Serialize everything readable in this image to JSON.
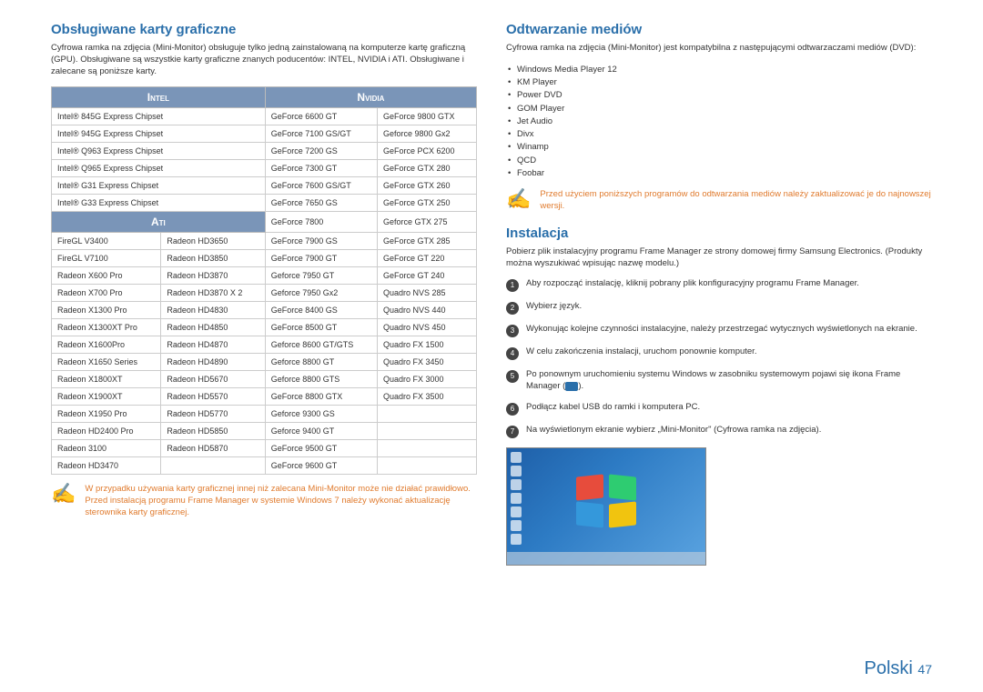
{
  "left": {
    "heading": "Obsługiwane karty graficzne",
    "intro": "Cyfrowa ramka na zdjęcia (Mini-Monitor) obsługuje tylko jedną zainstalowaną na komputerze kartę graficzną (GPU). Obsługiwane są wszystkie karty graficzne znanych poducentów: INTEL, NVIDIA i ATI. Obsługiwane i zalecane są poniższe karty.",
    "headers": {
      "intel": "Intel",
      "nvidia": "Nvidia",
      "ati": "Ati"
    },
    "intel_rows": [
      [
        "Intel® 845G Express Chipset",
        "GeForce 6600 GT",
        "GeForce 9800 GTX"
      ],
      [
        "Intel® 945G Express Chipset",
        "GeForce 7100 GS/GT",
        "Geforce 9800 Gx2"
      ],
      [
        "Intel® Q963 Express Chipset",
        "GeForce 7200 GS",
        "GeForce PCX 6200"
      ],
      [
        "Intel® Q965 Express Chipset",
        "GeForce 7300 GT",
        "GeForce GTX 280"
      ],
      [
        "Intel® G31 Express Chipset",
        "GeForce 7600 GS/GT",
        "GeForce GTX 260"
      ],
      [
        "Intel® G33 Express Chipset",
        "GeForce 7650 GS",
        "GeForce GTX 250"
      ]
    ],
    "ati_first": [
      "GeForce 7800",
      "Geforce GTX 275"
    ],
    "ati_rows": [
      [
        "FireGL V3400",
        "Radeon HD3650",
        "GeForce 7900 GS",
        "GeForce GTX 285"
      ],
      [
        "FireGL V7100",
        "Radeon HD3850",
        "GeForce 7900 GT",
        "GeForce GT 220"
      ],
      [
        "Radeon X600 Pro",
        "Radeon HD3870",
        "Geforce 7950 GT",
        "GeForce GT 240"
      ],
      [
        "Radeon X700 Pro",
        "Radeon HD3870 X 2",
        "Geforce 7950 Gx2",
        "Quadro NVS 285"
      ],
      [
        "Radeon X1300 Pro",
        "Radeon HD4830",
        "GeForce 8400 GS",
        "Quadro NVS 440"
      ],
      [
        "Radeon X1300XT Pro",
        "Radeon HD4850",
        "GeForce 8500 GT",
        "Quadro NVS 450"
      ],
      [
        "Radeon X1600Pro",
        "Radeon HD4870",
        "Geforce 8600 GT/GTS",
        "Quadro FX 1500"
      ],
      [
        "Radeon X1650 Series",
        "Radeon HD4890",
        "Geforce 8800 GT",
        "Quadro FX 3450"
      ],
      [
        "Radeon X1800XT",
        "Radeon HD5670",
        "Geforce 8800 GTS",
        "Quadro FX 3000"
      ],
      [
        "Radeon X1900XT",
        "Radeon HD5570",
        "GeForce 8800 GTX",
        "Quadro FX 3500"
      ],
      [
        "Radeon X1950 Pro",
        "Radeon HD5770",
        "Geforce 9300 GS",
        ""
      ],
      [
        "Radeon HD2400 Pro",
        "Radeon HD5850",
        "Geforce 9400 GT",
        ""
      ],
      [
        "Radeon 3100",
        "Radeon HD5870",
        "GeForce 9500 GT",
        ""
      ],
      [
        "Radeon HD3470",
        "",
        "GeForce 9600 GT",
        ""
      ]
    ],
    "note": "W przypadku używania karty graficznej innej niż zalecana Mini-Monitor może nie działać prawidłowo. Przed instalacją programu Frame Manager w systemie Windows 7 należy wykonać aktualizację sterownika karty graficznej."
  },
  "right": {
    "media_heading": "Odtwarzanie mediów",
    "media_intro": "Cyfrowa ramka na zdjęcia (Mini-Monitor) jest kompatybilna z następującymi odtwarzaczami mediów (DVD):",
    "players": [
      "Windows Media Player  12",
      "KM Player",
      "Power DVD",
      "GOM Player",
      "Jet Audio",
      "Divx",
      "Winamp",
      "QCD",
      "Foobar"
    ],
    "media_note": "Przed użyciem poniższych programów do odtwarzania mediów należy zaktualizować je do najnowszej wersji.",
    "install_heading": "Instalacja",
    "install_intro": "Pobierz plik instalacyjny programu Frame Manager ze strony domowej firmy Samsung Electronics. (Produkty można wyszukiwać wpisując nazwę modelu.)",
    "steps": [
      "Aby rozpocząć instalację, kliknij pobrany plik konfiguracyjny programu Frame Manager.",
      "Wybierz język.",
      "Wykonując kolejne czynności instalacyjne, należy przestrzegać wytycznych wyświetlonych na ekranie.",
      "W celu zakończenia instalacji, uruchom ponownie komputer.",
      "Po ponownym uruchomieniu systemu Windows w zasobniku systemowym pojawi się ikona Frame Manager (    ).",
      "Podłącz kabel USB do ramki i komputera PC.",
      "Na wyświetlonym ekranie wybierz „Mini-Monitor\" (Cyfrowa ramka na zdjęcia)."
    ]
  },
  "footer": {
    "lang": "Polski",
    "page": "47"
  }
}
